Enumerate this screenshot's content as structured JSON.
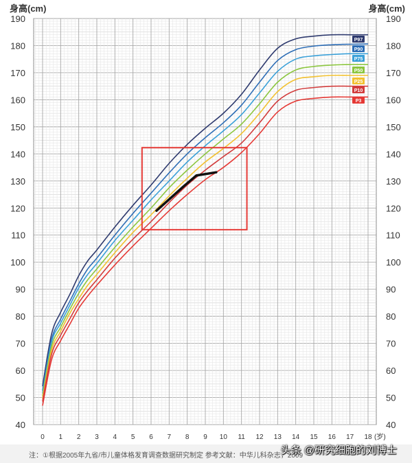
{
  "chart_data": {
    "type": "line",
    "ylabel_left": "身高(cm)",
    "ylabel_right": "身高(cm)",
    "xunit": "(岁)",
    "xlim": [
      0,
      18
    ],
    "ylim": [
      40,
      190
    ],
    "x_ticks": [
      "0",
      "1",
      "2",
      "3",
      "4",
      "5",
      "6",
      "7",
      "8",
      "9",
      "10",
      "11",
      "12",
      "13",
      "14",
      "15",
      "16",
      "17",
      "18"
    ],
    "y_ticks": [
      "40",
      "50",
      "60",
      "70",
      "80",
      "90",
      "100",
      "110",
      "120",
      "130",
      "140",
      "150",
      "160",
      "170",
      "180",
      "190"
    ],
    "grid": true,
    "x": [
      0,
      0.5,
      1,
      1.5,
      2,
      2.5,
      3,
      4,
      5,
      6,
      7,
      8,
      9,
      10,
      11,
      12,
      13,
      14,
      15,
      16,
      17,
      18
    ],
    "series": [
      {
        "name": "P97",
        "color": "#2e3a6e",
        "values": [
          54.2,
          73.5,
          81.5,
          88,
          95,
          100.5,
          104.5,
          113,
          121,
          128.5,
          136.5,
          143.5,
          149.5,
          155,
          162,
          171,
          179,
          182.5,
          183.5,
          184,
          184,
          184
        ]
      },
      {
        "name": "P90",
        "color": "#2d6db5",
        "values": [
          52.5,
          71.5,
          79,
          85.5,
          92,
          97.5,
          101.5,
          110,
          118,
          125.5,
          133,
          140,
          146,
          151.5,
          158,
          166.5,
          174.5,
          178.5,
          179.8,
          180.3,
          180.5,
          180.6
        ]
      },
      {
        "name": "P75",
        "color": "#3aa0d8",
        "values": [
          51.5,
          70.5,
          77.5,
          84,
          90.5,
          95.5,
          99.5,
          108,
          115.5,
          123,
          130,
          137,
          143,
          148.5,
          154.5,
          162.5,
          170.5,
          175,
          176.2,
          176.7,
          177,
          177
        ]
      },
      {
        "name": "P50",
        "color": "#8cc63f",
        "values": [
          50.5,
          69,
          76,
          82.5,
          88.5,
          93.5,
          97.5,
          105.5,
          113,
          120,
          127.5,
          134,
          140,
          145.5,
          151,
          158.5,
          166.5,
          171,
          172.3,
          172.8,
          173,
          173
        ]
      },
      {
        "name": "P25",
        "color": "#f2c130",
        "values": [
          49.5,
          67.5,
          74.5,
          81,
          86.5,
          91.5,
          95.5,
          103.5,
          111,
          117.5,
          124.5,
          131,
          137,
          142,
          147.5,
          155,
          163,
          167.5,
          168.5,
          169,
          169,
          169
        ]
      },
      {
        "name": "P10",
        "color": "#d23c3c",
        "values": [
          48.5,
          66,
          73,
          79,
          85,
          89.5,
          93.5,
          101.5,
          108.5,
          115,
          122,
          128.5,
          134,
          139,
          144,
          151.5,
          159.5,
          163.5,
          164.5,
          165,
          165,
          165
        ]
      },
      {
        "name": "P3",
        "color": "#e53935",
        "values": [
          47,
          64,
          71,
          77,
          83,
          87.5,
          91.5,
          99,
          106,
          112.5,
          119,
          125,
          130.5,
          135,
          140.5,
          147.5,
          155.5,
          159.5,
          160.5,
          161,
          161,
          161
        ]
      }
    ],
    "measured": {
      "x": [
        6.3,
        7.8,
        8.5,
        9.6
      ],
      "values": [
        119,
        128,
        132,
        133.2
      ],
      "color": "#111111"
    },
    "highlight_box": {
      "x": [
        5.5,
        11.3
      ],
      "y": [
        112,
        142.3
      ],
      "color": "#e53935"
    }
  },
  "footnote": "注：①根据2005年九省/市儿童体格发育调查数据研究制定  参考文献：中华儿科杂志，2009",
  "watermark": "头条 @研究细胞的刘博士"
}
